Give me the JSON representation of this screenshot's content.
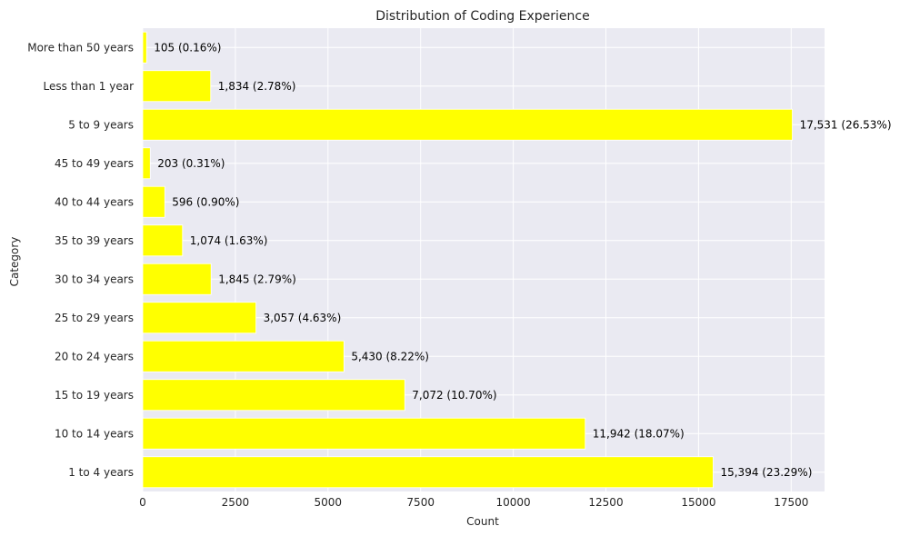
{
  "colors": {
    "background": "#ffffff",
    "plot_background": "#eaeaf2",
    "grid": "#ffffff",
    "bar_fill": "#ffff00",
    "text": "#262626"
  },
  "chart_data": {
    "type": "bar",
    "orientation": "horizontal",
    "title": "Distribution of Coding Experience",
    "xlabel": "Count",
    "ylabel": "Category",
    "xlim": [
      0,
      18400
    ],
    "xticks": [
      0,
      2500,
      5000,
      7500,
      10000,
      12500,
      15000,
      17500
    ],
    "xtick_labels": [
      "0",
      "2500",
      "5000",
      "7500",
      "10000",
      "12500",
      "15000",
      "17500"
    ],
    "grid": true,
    "categories": [
      "1 to 4 years",
      "10 to 14 years",
      "15 to 19 years",
      "20 to 24 years",
      "25 to 29 years",
      "30 to 34 years",
      "35 to 39 years",
      "40 to 44 years",
      "45 to 49 years",
      "5 to 9 years",
      "Less than 1 year",
      "More than 50 years"
    ],
    "values": [
      15394,
      11942,
      7072,
      5430,
      3057,
      1845,
      1074,
      596,
      203,
      17531,
      1834,
      105
    ],
    "data_labels": [
      "15,394 (23.29%)",
      "11,942 (18.07%)",
      "7,072 (10.70%)",
      "5,430 (8.22%)",
      "3,057 (4.63%)",
      "1,845 (2.79%)",
      "1,074 (1.63%)",
      "596 (0.90%)",
      "203 (0.31%)",
      "17,531 (26.53%)",
      "1,834 (2.78%)",
      "105 (0.16%)"
    ]
  }
}
